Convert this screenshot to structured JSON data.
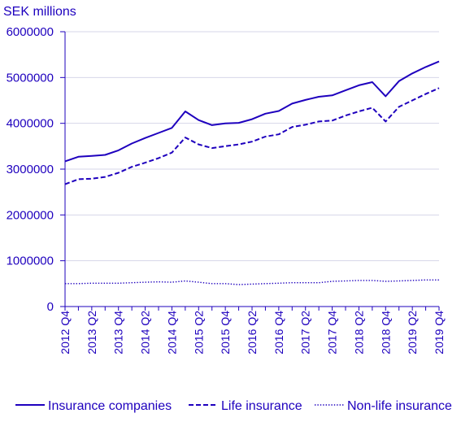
{
  "chart_data": {
    "type": "line",
    "title": "",
    "ylabel": "SEK millions",
    "xlabel": "",
    "ylim": [
      0,
      6000000
    ],
    "yticks": [
      0,
      1000000,
      2000000,
      3000000,
      4000000,
      5000000,
      6000000
    ],
    "ytick_labels": [
      "0",
      "1000000",
      "2000000",
      "3000000",
      "4000000",
      "5000000",
      "6000000"
    ],
    "grid": "horizontal",
    "legend_position": "bottom",
    "categories": [
      "2012 Q4",
      "2013 Q1",
      "2013 Q2",
      "2013 Q3",
      "2013 Q4",
      "2014 Q1",
      "2014 Q2",
      "2014 Q3",
      "2014 Q4",
      "2015 Q1",
      "2015 Q2",
      "2015 Q3",
      "2015 Q4",
      "2016 Q1",
      "2016 Q2",
      "2016 Q3",
      "2016 Q4",
      "2017 Q1",
      "2017 Q2",
      "2017 Q3",
      "2017 Q4",
      "2018 Q1",
      "2018 Q2",
      "2018 Q3",
      "2018 Q4",
      "2019 Q1",
      "2019 Q2",
      "2019 Q3",
      "2019 Q4"
    ],
    "x_tick_labels": [
      "2012 Q4",
      "2013 Q2",
      "2013 Q4",
      "2014 Q2",
      "2014 Q4",
      "2015 Q2",
      "2015 Q4",
      "2016 Q2",
      "2016 Q4",
      "2017 Q2",
      "2017 Q4",
      "2018 Q2",
      "2018 Q4",
      "2019 Q2",
      "2019 Q4"
    ],
    "series": [
      {
        "name": "Insurance companies",
        "style": "solid",
        "color": "#1e00be",
        "values": [
          3170000,
          3270000,
          3290000,
          3310000,
          3410000,
          3560000,
          3680000,
          3790000,
          3900000,
          4260000,
          4070000,
          3960000,
          4000000,
          4010000,
          4090000,
          4210000,
          4270000,
          4430000,
          4510000,
          4580000,
          4610000,
          4720000,
          4830000,
          4900000,
          4590000,
          4920000,
          5090000,
          5230000,
          5350000
        ]
      },
      {
        "name": "Life insurance",
        "style": "dashed",
        "color": "#1e00be",
        "values": [
          2670000,
          2780000,
          2790000,
          2830000,
          2920000,
          3050000,
          3140000,
          3240000,
          3360000,
          3690000,
          3540000,
          3460000,
          3500000,
          3540000,
          3600000,
          3710000,
          3760000,
          3920000,
          3970000,
          4040000,
          4060000,
          4170000,
          4260000,
          4340000,
          4040000,
          4360000,
          4500000,
          4640000,
          4770000
        ]
      },
      {
        "name": "Non-life insurance",
        "style": "dotted",
        "color": "#1e00be",
        "values": [
          500000,
          500000,
          510000,
          510000,
          510000,
          520000,
          530000,
          540000,
          530000,
          560000,
          530000,
          500000,
          500000,
          480000,
          490000,
          500000,
          510000,
          520000,
          520000,
          520000,
          550000,
          560000,
          570000,
          570000,
          550000,
          560000,
          570000,
          580000,
          580000
        ]
      }
    ]
  }
}
